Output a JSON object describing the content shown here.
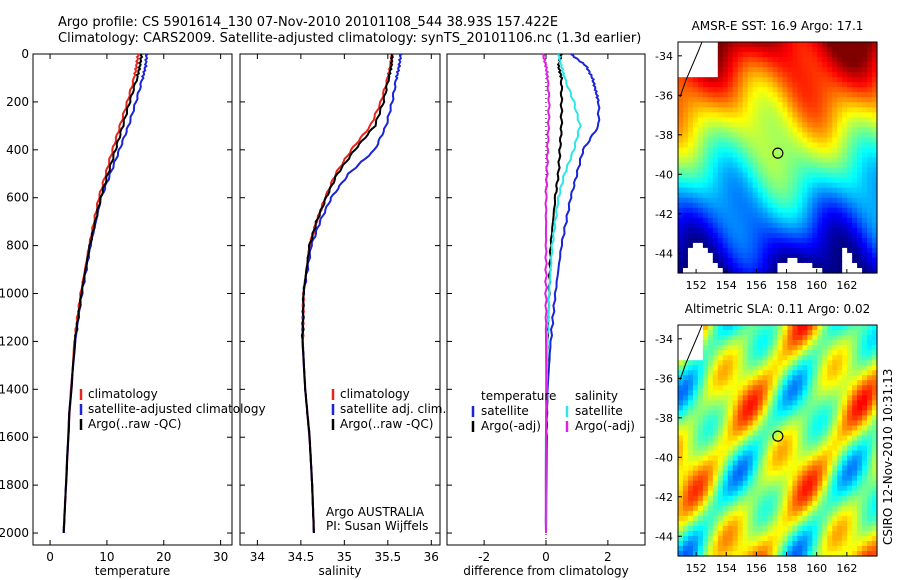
{
  "header": {
    "line1": "Argo profile: CS 5901614_130 07-Nov-2010 20101108_544 38.93S 157.422E",
    "line2": "Climatology: CARS2009. Satellite-adjusted climatology: synTS_20101106.nc (1.3d earlier)"
  },
  "side_label": "CSIRO 12-Nov-2010 10:31:13",
  "colors": {
    "red": "#e8251c",
    "blue": "#1a24d8",
    "black": "#000000",
    "cyan": "#2ee6e6",
    "magenta": "#e020e0"
  },
  "chart_data": [
    {
      "type": "line",
      "xlabel": "temperature",
      "ylabel": "",
      "xlim": [
        -3,
        32
      ],
      "ylim": [
        2050,
        0
      ],
      "xticks": [
        0,
        10,
        20,
        30
      ],
      "yticks": [
        0,
        200,
        400,
        600,
        800,
        1000,
        1200,
        1400,
        1600,
        1800,
        2000
      ],
      "legend": [
        "climatology",
        "satellite-adjusted climatology",
        "Argo(..raw -QC)"
      ],
      "legend_position": "lower-center",
      "series": [
        {
          "name": "climatology",
          "color": "red",
          "depth": [
            0,
            50,
            100,
            200,
            300,
            400,
            500,
            600,
            800,
            1000,
            1200,
            1500,
            1800,
            2000
          ],
          "values": [
            15.5,
            15.2,
            14.8,
            13.6,
            12.3,
            11.0,
            9.8,
            8.6,
            6.9,
            5.4,
            4.3,
            3.4,
            2.8,
            2.4
          ]
        },
        {
          "name": "satellite-adjusted climatology",
          "color": "blue",
          "depth": [
            0,
            50,
            100,
            200,
            300,
            400,
            500,
            600,
            800,
            1000,
            1200,
            1500,
            1800,
            2000
          ],
          "values": [
            17.0,
            16.8,
            16.3,
            15.1,
            13.8,
            12.2,
            10.6,
            9.0,
            7.1,
            5.6,
            4.4,
            3.4,
            2.8,
            2.4
          ]
        },
        {
          "name": "Argo(..raw -QC)",
          "color": "black",
          "depth": [
            0,
            50,
            100,
            200,
            300,
            400,
            500,
            600,
            800,
            1000,
            1200,
            1500,
            1800,
            2000
          ],
          "values": [
            16.1,
            15.8,
            15.3,
            14.0,
            12.8,
            11.5,
            10.2,
            8.9,
            7.0,
            5.5,
            4.4,
            3.4,
            2.8,
            2.4
          ]
        }
      ]
    },
    {
      "type": "line",
      "xlabel": "salinity",
      "ylabel": "",
      "xlim": [
        33.8,
        36.1
      ],
      "ylim": [
        2050,
        0
      ],
      "xticks": [
        34,
        34.5,
        35,
        35.5,
        36
      ],
      "yticks": [],
      "legend": [
        "climatology",
        "satellite adj. clim.",
        "Argo(..raw -QC)"
      ],
      "legend_position": "lower-center",
      "annotation": [
        "Argo AUSTRALIA",
        "PI: Susan Wijffels"
      ],
      "series": [
        {
          "name": "climatology",
          "color": "red",
          "depth": [
            0,
            50,
            100,
            200,
            300,
            400,
            500,
            600,
            700,
            800,
            1000,
            1200,
            1400,
            1600,
            1800,
            2000
          ],
          "values": [
            35.55,
            35.53,
            35.5,
            35.42,
            35.3,
            35.08,
            34.9,
            34.78,
            34.68,
            34.6,
            34.53,
            34.52,
            34.55,
            34.6,
            34.63,
            34.65
          ]
        },
        {
          "name": "satellite adj. clim.",
          "color": "blue",
          "depth": [
            0,
            50,
            100,
            200,
            300,
            400,
            500,
            600,
            700,
            800,
            1000,
            1200,
            1400,
            1600,
            1800,
            2000
          ],
          "values": [
            35.65,
            35.63,
            35.6,
            35.55,
            35.48,
            35.35,
            35.05,
            34.85,
            34.72,
            34.62,
            34.53,
            34.52,
            34.55,
            34.6,
            34.63,
            34.65
          ]
        },
        {
          "name": "Argo(..raw -QC)",
          "color": "black",
          "depth": [
            0,
            50,
            100,
            200,
            300,
            400,
            500,
            600,
            700,
            800,
            1000,
            1200,
            1400,
            1600,
            1800,
            2000
          ],
          "values": [
            35.55,
            35.54,
            35.51,
            35.45,
            35.35,
            35.12,
            34.92,
            34.79,
            34.68,
            34.6,
            34.53,
            34.52,
            34.55,
            34.6,
            34.63,
            34.65
          ]
        }
      ]
    },
    {
      "type": "line",
      "xlabel": "difference from climatology",
      "ylabel": "",
      "xlim": [
        -3.2,
        3.2
      ],
      "ylim": [
        2050,
        0
      ],
      "xticks": [
        -2,
        0,
        2
      ],
      "yticks": [],
      "legend_groups": [
        {
          "title": "temperature",
          "items": [
            "satellite",
            "Argo(-adj)"
          ]
        },
        {
          "title": "salinity",
          "items": [
            "satellite",
            "Argo(-adj)"
          ]
        }
      ],
      "legend_position": "lower-center",
      "series": [
        {
          "name": "temperature satellite",
          "color": "blue",
          "depth": [
            0,
            50,
            100,
            150,
            200,
            300,
            400,
            500,
            600,
            800,
            1000,
            1200,
            1400,
            1600,
            2000
          ],
          "values": [
            0.8,
            1.3,
            1.5,
            1.6,
            1.7,
            1.7,
            1.2,
            1.0,
            0.8,
            0.5,
            0.3,
            0.15,
            0.05,
            0.02,
            0.0
          ]
        },
        {
          "name": "temperature Argo(-adj)",
          "color": "black",
          "depth": [
            0,
            50,
            100,
            200,
            300,
            400,
            500,
            600,
            800,
            1000,
            1200,
            1400,
            1600,
            2000
          ],
          "values": [
            0.5,
            0.4,
            0.5,
            0.5,
            0.5,
            0.45,
            0.4,
            0.3,
            0.15,
            0.1,
            0.05,
            0.02,
            0.0,
            0.0
          ]
        },
        {
          "name": "salinity satellite",
          "color": "cyan",
          "depth": [
            0,
            50,
            100,
            200,
            300,
            400,
            500,
            600,
            800,
            1000,
            1200,
            1400,
            1600,
            2000
          ],
          "values": [
            0.4,
            0.5,
            0.6,
            0.9,
            1.1,
            0.9,
            0.6,
            0.4,
            0.2,
            0.1,
            0.05,
            0.02,
            0.0,
            0.0
          ]
        },
        {
          "name": "salinity Argo(-adj)",
          "color": "magenta",
          "depth": [
            0,
            50,
            100,
            200,
            300,
            400,
            500,
            600,
            800,
            1000,
            1200,
            1600,
            2000
          ],
          "values": [
            -0.1,
            0.0,
            0.05,
            0.1,
            0.08,
            0.05,
            0.03,
            0.0,
            0.0,
            0.0,
            0.0,
            0.0,
            0.0
          ]
        }
      ]
    },
    {
      "type": "heatmap",
      "title": "AMSR-E SST: 16.9 Argo: 17.1",
      "xlabel": "",
      "ylabel": "",
      "xlim": [
        150.8,
        164.0
      ],
      "ylim": [
        -45,
        -33.3
      ],
      "xticks": [
        152,
        154,
        156,
        158,
        160,
        162
      ],
      "yticks": [
        -34,
        -36,
        -38,
        -40,
        -42,
        -44
      ],
      "marker": {
        "lon": 157.422,
        "lat": -38.93
      }
    },
    {
      "type": "heatmap",
      "title": "Altimetric SLA: 0.11 Argo: 0.02",
      "xlabel": "",
      "ylabel": "",
      "xlim": [
        150.8,
        164.0
      ],
      "ylim": [
        -45,
        -33.3
      ],
      "xticks": [
        152,
        154,
        156,
        158,
        160,
        162
      ],
      "yticks": [
        -34,
        -36,
        -38,
        -40,
        -42,
        -44
      ],
      "marker": {
        "lon": 157.422,
        "lat": -38.93
      }
    }
  ]
}
